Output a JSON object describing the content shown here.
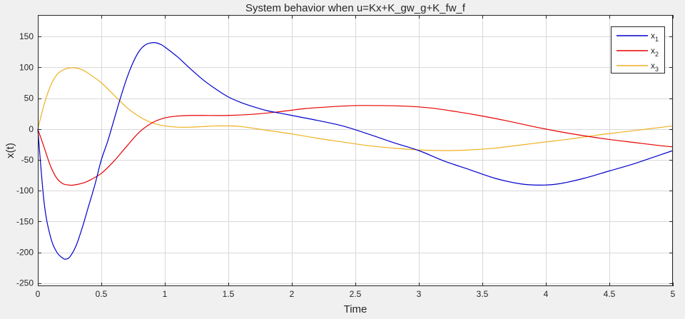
{
  "chart_data": {
    "type": "line",
    "title": "System behavior when u=Kx+K_gw_g+K_fw_f",
    "xlabel": "Time",
    "ylabel": "x(t)",
    "xlim": [
      0,
      5
    ],
    "ylim": [
      -255,
      185
    ],
    "xticks": [
      0,
      0.5,
      1,
      1.5,
      2,
      2.5,
      3,
      3.5,
      4,
      4.5,
      5
    ],
    "xtick_labels": [
      "0",
      "0.5",
      "1",
      "1.5",
      "2",
      "2.5",
      "3",
      "3.5",
      "4",
      "4.5",
      "5"
    ],
    "yticks": [
      -250,
      -200,
      -150,
      -100,
      -50,
      0,
      50,
      100,
      150
    ],
    "ytick_labels": [
      "-250",
      "-200",
      "-150",
      "-100",
      "-50",
      "0",
      "50",
      "100",
      "150"
    ],
    "grid": true,
    "legend_position": "top-right",
    "series": [
      {
        "name": "x1",
        "label_base": "x",
        "label_sub": "1",
        "color": "#0000cc",
        "x": [
          0,
          0.05,
          0.1,
          0.15,
          0.2,
          0.22,
          0.25,
          0.3,
          0.35,
          0.4,
          0.45,
          0.5,
          0.55,
          0.6,
          0.65,
          0.7,
          0.75,
          0.8,
          0.85,
          0.9,
          0.93,
          0.97,
          1.0,
          1.1,
          1.2,
          1.3,
          1.4,
          1.5,
          1.6,
          1.7,
          1.8,
          1.9,
          2.0,
          2.2,
          2.4,
          2.6,
          2.8,
          3.0,
          3.2,
          3.4,
          3.6,
          3.8,
          3.95,
          4.1,
          4.3,
          4.5,
          4.7,
          4.9,
          5.0
        ],
        "y": [
          0,
          -120,
          -175,
          -200,
          -210,
          -211,
          -208,
          -190,
          -160,
          -125,
          -90,
          -50,
          -20,
          15,
          50,
          82,
          108,
          127,
          137,
          140,
          140,
          137,
          133,
          117,
          98,
          80,
          65,
          52,
          43,
          36,
          30,
          26,
          22,
          14,
          5,
          -8,
          -22,
          -35,
          -52,
          -66,
          -80,
          -89,
          -91,
          -89,
          -80,
          -68,
          -56,
          -42,
          -35
        ]
      },
      {
        "name": "x2",
        "label_base": "x",
        "label_sub": "2",
        "color": "#e60000",
        "x": [
          0,
          0.05,
          0.1,
          0.15,
          0.2,
          0.25,
          0.28,
          0.35,
          0.4,
          0.5,
          0.6,
          0.7,
          0.8,
          0.9,
          1.0,
          1.1,
          1.2,
          1.3,
          1.5,
          1.7,
          1.9,
          2.1,
          2.3,
          2.5,
          2.7,
          2.9,
          3.1,
          3.3,
          3.5,
          3.7,
          3.9,
          4.1,
          4.3,
          4.5,
          4.7,
          4.9,
          5.0
        ],
        "y": [
          0,
          -30,
          -60,
          -80,
          -89,
          -91,
          -91,
          -88,
          -84,
          -72,
          -52,
          -28,
          -5,
          10,
          18,
          21,
          22,
          22,
          22,
          24,
          28,
          33,
          36,
          38,
          38,
          37,
          34,
          28,
          21,
          13,
          4,
          -4,
          -11,
          -17,
          -22,
          -27,
          -29
        ]
      },
      {
        "name": "x3",
        "label_base": "x",
        "label_sub": "3",
        "color": "#edb120",
        "x": [
          0,
          0.05,
          0.1,
          0.15,
          0.2,
          0.25,
          0.3,
          0.35,
          0.4,
          0.5,
          0.6,
          0.7,
          0.8,
          0.9,
          1.0,
          1.1,
          1.2,
          1.3,
          1.4,
          1.5,
          1.6,
          1.8,
          2.0,
          2.2,
          2.4,
          2.6,
          2.8,
          3.0,
          3.2,
          3.4,
          3.6,
          3.8,
          4.0,
          4.2,
          4.4,
          4.6,
          4.8,
          5.0
        ],
        "y": [
          0,
          40,
          70,
          88,
          96,
          99,
          99,
          96,
          90,
          75,
          55,
          35,
          20,
          10,
          5,
          3,
          3,
          4,
          5,
          5,
          4,
          -2,
          -8,
          -15,
          -21,
          -27,
          -31,
          -34,
          -35,
          -34,
          -31,
          -26,
          -21,
          -16,
          -10,
          -5,
          0,
          5
        ]
      }
    ]
  }
}
